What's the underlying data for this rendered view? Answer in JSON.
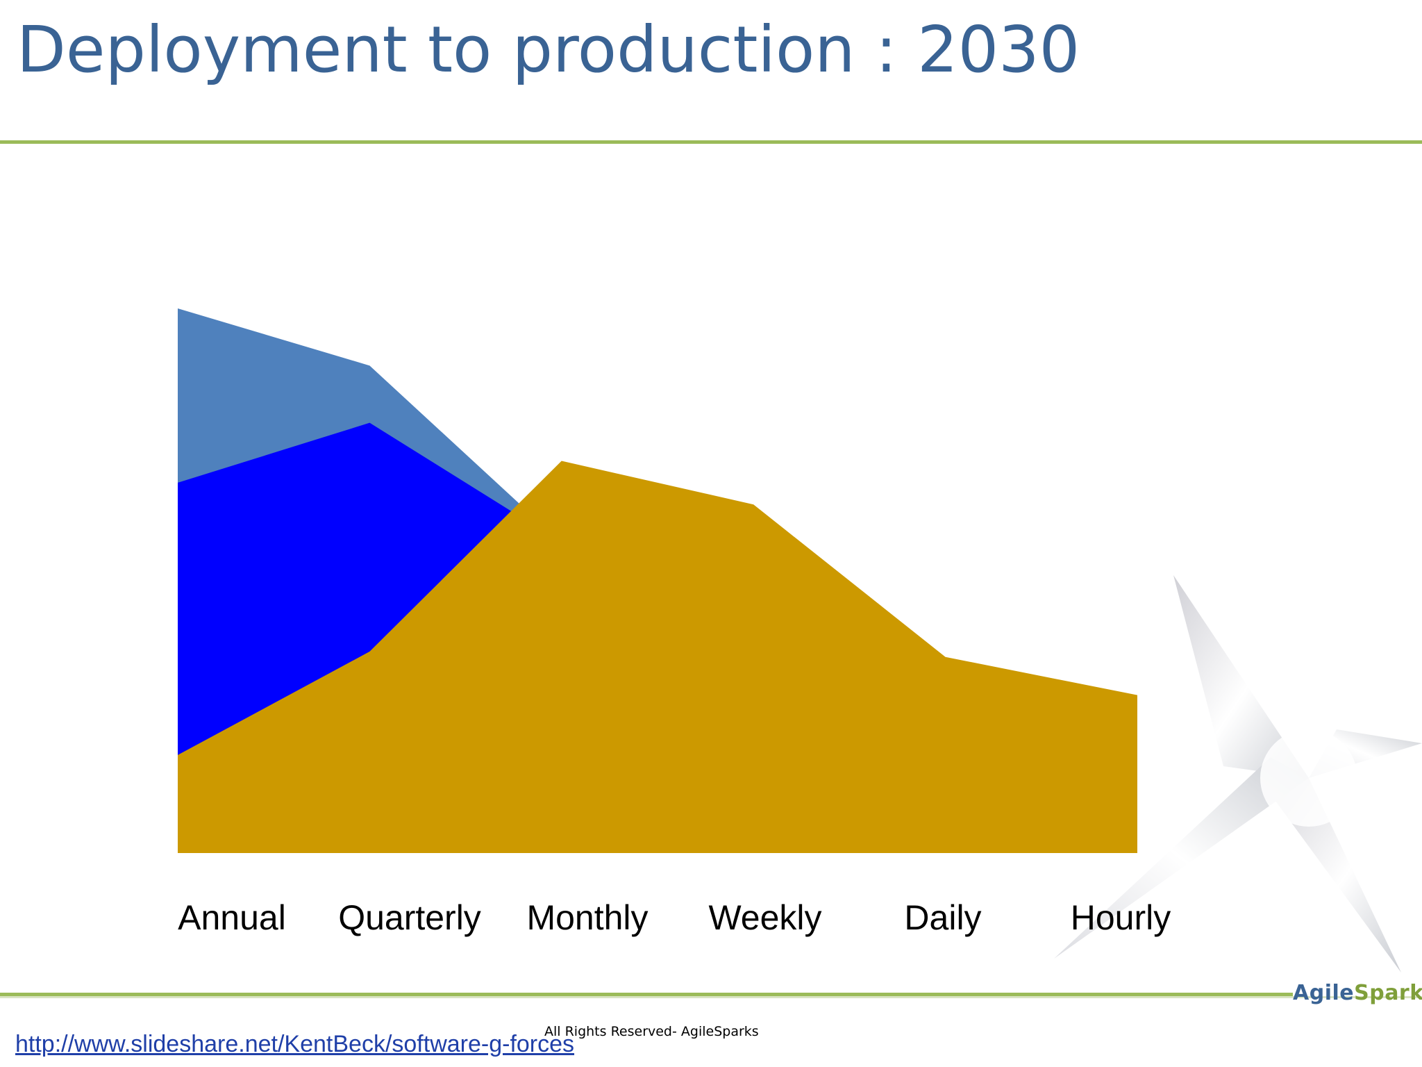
{
  "slide": {
    "title": "Deployment to production : 2030",
    "footer_link": "http://www.slideshare.net/KentBeck/software-g-forces",
    "copyright": "All Rights Reserved- AgileSparks",
    "brand": {
      "part1": "Agile",
      "part2": "Sparks"
    },
    "colors": {
      "title": "#3a6394",
      "rule": "#9bbb59",
      "link": "#1f3fa8"
    }
  },
  "chart_data": {
    "type": "area",
    "stacked": false,
    "title": "",
    "xlabel": "",
    "ylabel": "",
    "categories": [
      "Annual",
      "Quarterly",
      "Monthly",
      "Weekly",
      "Daily",
      "Hourly"
    ],
    "ylim": [
      0,
      100
    ],
    "axes_visible": false,
    "grid": false,
    "legend": "none",
    "series": [
      {
        "color": "#4f81bd",
        "values": [
          100,
          89.5,
          57,
          30,
          22,
          0
        ]
      },
      {
        "color": "#0000ff",
        "values": [
          68,
          79,
          57,
          30,
          22,
          0
        ]
      },
      {
        "color": "#cc9900",
        "values": [
          18,
          37,
          72,
          64,
          36,
          29
        ]
      }
    ]
  }
}
